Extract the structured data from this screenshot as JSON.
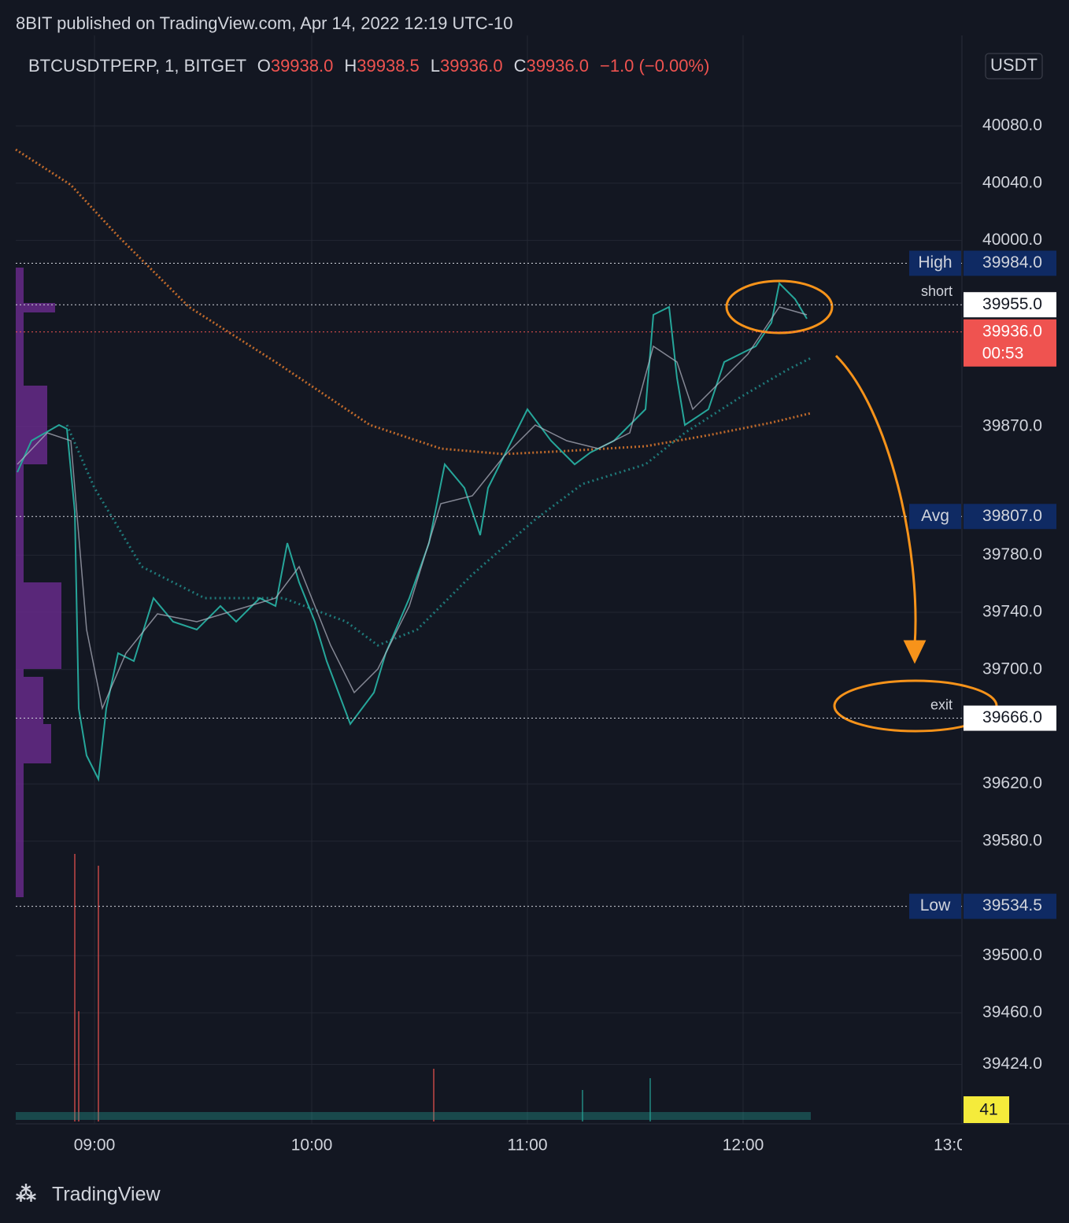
{
  "header": {
    "title": "8BIT published on TradingView.com, Apr 14, 2022 12:19 UTC-10"
  },
  "legend": {
    "symbol": "BTCUSDTPERP, 1, BITGET",
    "open_label": "O",
    "open": "39938.0",
    "high_label": "H",
    "high": "39938.5",
    "low_label": "L",
    "low": "39936.0",
    "close_label": "C",
    "close": "39936.0",
    "change": "−1.0 (−0.00%)"
  },
  "price_axis": {
    "currency": "USDT",
    "ticks": [
      {
        "value": 40080,
        "label": "40080.0"
      },
      {
        "value": 40040,
        "label": "40040.0"
      },
      {
        "value": 40000,
        "label": "40000.0"
      },
      {
        "value": 39870,
        "label": "39870.0"
      },
      {
        "value": 39780,
        "label": "39780.0"
      },
      {
        "value": 39740,
        "label": "39740.0"
      },
      {
        "value": 39700,
        "label": "39700.0"
      },
      {
        "value": 39620,
        "label": "39620.0"
      },
      {
        "value": 39580,
        "label": "39580.0"
      },
      {
        "value": 39500,
        "label": "39500.0"
      },
      {
        "value": 39460,
        "label": "39460.0"
      },
      {
        "value": 39424,
        "label": "39424.0"
      }
    ]
  },
  "markers": [
    {
      "name": "High",
      "value": 39984,
      "label": "39984.0",
      "kind": "navy"
    },
    {
      "name": "short",
      "value": 39955,
      "label": "39955.0",
      "kind": "white"
    },
    {
      "name": "Avg",
      "value": 39807,
      "label": "39807.0",
      "kind": "navy"
    },
    {
      "name": "exit",
      "value": 39666,
      "label": "39666.0",
      "kind": "white"
    },
    {
      "name": "Low",
      "value": 39534.5,
      "label": "39534.5",
      "kind": "navy"
    }
  ],
  "last_price": {
    "value": 39936,
    "label": "39936.0",
    "countdown": "00:53"
  },
  "volume_label": "41",
  "time_axis": [
    "09:00",
    "10:00",
    "11:00",
    "12:00",
    "13:0"
  ],
  "footer": {
    "brand": "TradingView"
  }
}
